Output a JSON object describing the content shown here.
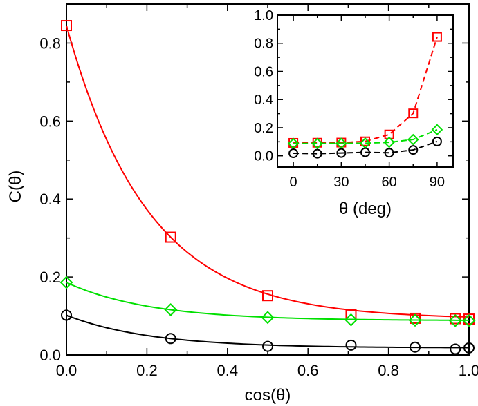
{
  "chart_data": [
    {
      "type": "scatter",
      "panel": "main",
      "xlabel": "cos(θ)",
      "ylabel": "C(θ)",
      "xlim": [
        0,
        1
      ],
      "ylim": [
        0,
        0.9
      ],
      "xticks": [
        "0.0",
        "0.2",
        "0.4",
        "0.6",
        "0.8",
        "1.0"
      ],
      "yticks": [
        "0.0",
        "0.2",
        "0.4",
        "0.6",
        "0.8"
      ],
      "grid": false,
      "series": [
        {
          "marker": "square",
          "color": "#ff0000",
          "fit_line": true,
          "x": [
            0.0,
            0.259,
            0.5,
            0.707,
            0.866,
            0.966,
            1.0
          ],
          "y": [
            0.845,
            0.302,
            0.152,
            0.103,
            0.094,
            0.093,
            0.092
          ]
        },
        {
          "marker": "diamond",
          "color": "#00e000",
          "fit_line": true,
          "x": [
            0.0,
            0.259,
            0.5,
            0.707,
            0.866,
            0.966,
            1.0
          ],
          "y": [
            0.186,
            0.116,
            0.096,
            0.09,
            0.089,
            0.088,
            0.088
          ]
        },
        {
          "marker": "circle",
          "color": "#000000",
          "fit_line": true,
          "x": [
            0.0,
            0.259,
            0.5,
            0.707,
            0.866,
            0.966,
            1.0
          ],
          "y": [
            0.102,
            0.042,
            0.022,
            0.025,
            0.02,
            0.015,
            0.018
          ]
        }
      ]
    },
    {
      "type": "line",
      "panel": "inset",
      "legend_position": "top-right",
      "xlabel": "θ (deg)",
      "ylabel": "",
      "xlim": [
        -10,
        100
      ],
      "ylim": [
        -0.08,
        1.0
      ],
      "xticks": [
        "0",
        "30",
        "60",
        "90"
      ],
      "yticks": [
        "0.0",
        "0.2",
        "0.4",
        "0.6",
        "0.8",
        "1.0"
      ],
      "grid": false,
      "line_style": "dashed",
      "series": [
        {
          "marker": "square",
          "color": "#ff0000",
          "x": [
            0,
            15,
            30,
            45,
            60,
            75,
            90
          ],
          "y": [
            0.092,
            0.093,
            0.094,
            0.103,
            0.152,
            0.302,
            0.845
          ]
        },
        {
          "marker": "diamond",
          "color": "#00e000",
          "x": [
            0,
            15,
            30,
            45,
            60,
            75,
            90
          ],
          "y": [
            0.088,
            0.088,
            0.089,
            0.09,
            0.096,
            0.116,
            0.186
          ]
        },
        {
          "marker": "circle",
          "color": "#000000",
          "x": [
            0,
            15,
            30,
            45,
            60,
            75,
            90
          ],
          "y": [
            0.018,
            0.015,
            0.02,
            0.025,
            0.022,
            0.042,
            0.102
          ]
        }
      ]
    }
  ]
}
